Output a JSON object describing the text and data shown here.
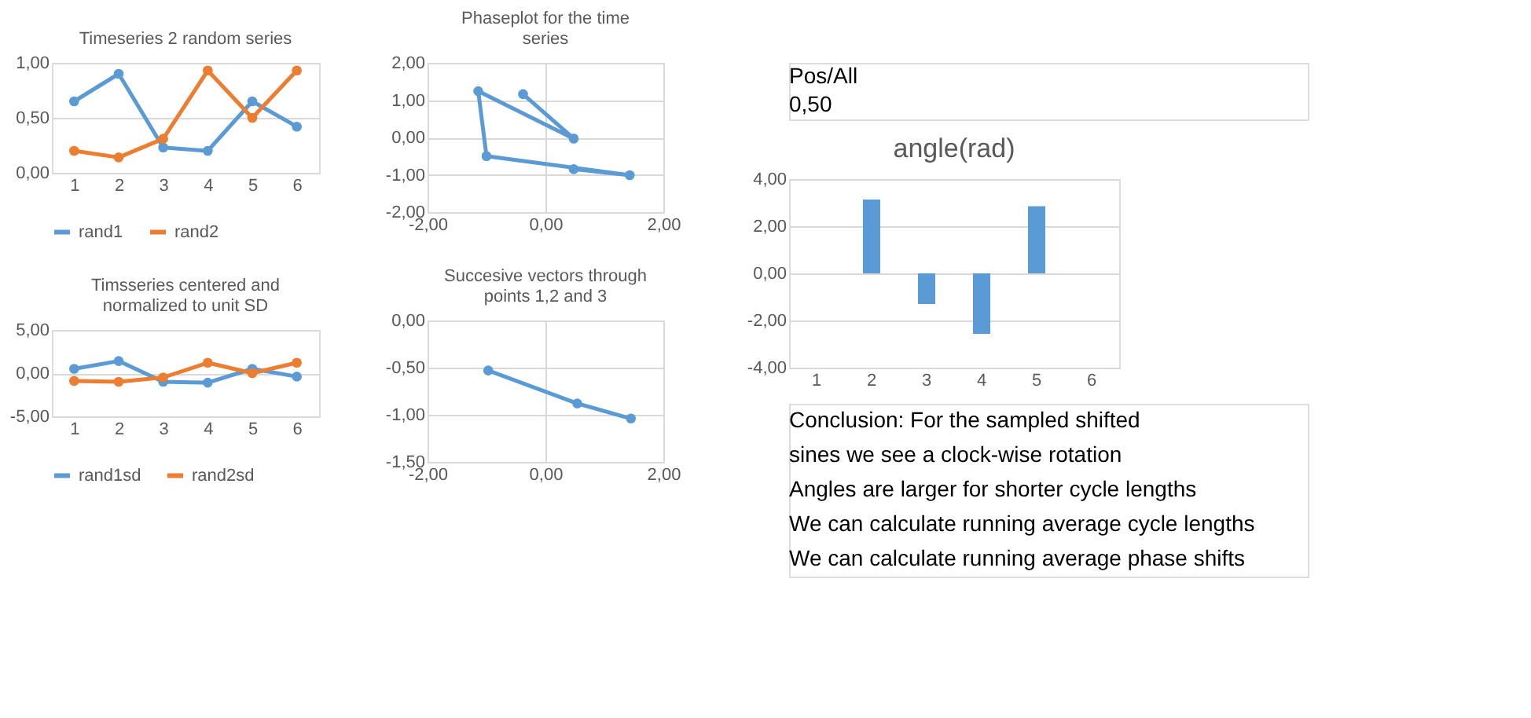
{
  "chart_data": [
    {
      "type": "line",
      "title": "Timeseries 2 random series",
      "categories": [
        "1",
        "2",
        "3",
        "4",
        "5",
        "6"
      ],
      "marker": "circle",
      "grid": "y",
      "legend": "bottom",
      "ylim": [
        0,
        1
      ],
      "yticks": [
        {
          "value": 0,
          "label": "0,00"
        },
        {
          "value": 0.5,
          "label": "0,50"
        },
        {
          "value": 1,
          "label": "1,00"
        }
      ],
      "series": [
        {
          "name": "rand1",
          "color": "#5b9bd5",
          "values": [
            0.65,
            0.9,
            0.23,
            0.2,
            0.65,
            0.42
          ]
        },
        {
          "name": "rand2",
          "color": "#ed7d31",
          "values": [
            0.2,
            0.14,
            0.31,
            0.93,
            0.5,
            0.93
          ]
        }
      ]
    },
    {
      "type": "line",
      "title": "Timsseries centered and normalized to unit SD",
      "categories": [
        "1",
        "2",
        "3",
        "4",
        "5",
        "6"
      ],
      "marker": "circle",
      "grid": "y",
      "legend": "bottom",
      "ylim": [
        -5,
        5
      ],
      "yticks": [
        {
          "value": -5,
          "label": "-5,00"
        },
        {
          "value": 0,
          "label": "0,00"
        },
        {
          "value": 5,
          "label": "5,00"
        }
      ],
      "series": [
        {
          "name": "rand1sd",
          "color": "#5b9bd5",
          "values": [
            0.5,
            1.4,
            -1.0,
            -1.1,
            0.5,
            -0.4
          ]
        },
        {
          "name": "rand2sd",
          "color": "#ed7d31",
          "values": [
            -0.9,
            -1.0,
            -0.5,
            1.2,
            0.0,
            1.2
          ]
        }
      ]
    },
    {
      "type": "line",
      "title": "Phaseplot for the time series",
      "marker": "circle",
      "grid": true,
      "xlim": [
        -2,
        2
      ],
      "xticks": [
        {
          "value": -2,
          "label": "-2,00"
        },
        {
          "value": 0,
          "label": "0,00"
        },
        {
          "value": 2,
          "label": "2,00"
        }
      ],
      "ylim": [
        -2,
        2
      ],
      "yticks": [
        {
          "value": -2,
          "label": "-2,00"
        },
        {
          "value": -1,
          "label": "-1,00"
        },
        {
          "value": 0,
          "label": "0,00"
        },
        {
          "value": 1,
          "label": "1,00"
        },
        {
          "value": 2,
          "label": "2,00"
        }
      ],
      "series": [
        {
          "color": "#5b9bd5",
          "x": [
            0.48,
            1.43,
            -1.0,
            -1.14,
            0.48,
            -0.38
          ],
          "values": [
            -0.85,
            -1.01,
            -0.5,
            1.24,
            -0.03,
            1.16
          ]
        }
      ]
    },
    {
      "type": "line",
      "title": "Succesive vectors through points 1,2 and 3",
      "marker": "circle",
      "grid": true,
      "xlim": [
        -2,
        2
      ],
      "xticks": [
        {
          "value": -2,
          "label": "-2,00"
        },
        {
          "value": 0,
          "label": "0,00"
        },
        {
          "value": 2,
          "label": "2,00"
        }
      ],
      "ylim": [
        -1.5,
        0
      ],
      "yticks": [
        {
          "value": -1.5,
          "label": "-1,50"
        },
        {
          "value": -1,
          "label": "-1,00"
        },
        {
          "value": -0.5,
          "label": "-0,50"
        },
        {
          "value": 0,
          "label": "0,00"
        }
      ],
      "series": [
        {
          "color": "#5b9bd5",
          "x": [
            -0.97,
            0.54,
            1.45
          ],
          "values": [
            -0.53,
            -0.88,
            -1.04
          ]
        }
      ]
    },
    {
      "type": "other",
      "annotations": [
        "Pos/All",
        "0,50"
      ]
    },
    {
      "type": "bar",
      "title": "angle(rad)",
      "categories": [
        "1",
        "2",
        "3",
        "4",
        "5",
        "6"
      ],
      "grid": "y",
      "ylim": [
        -4,
        4
      ],
      "yticks": [
        {
          "value": -4,
          "label": "-4,00"
        },
        {
          "value": -2,
          "label": "-2,00"
        },
        {
          "value": 0,
          "label": "0,00"
        },
        {
          "value": 2,
          "label": "2,00"
        },
        {
          "value": 4,
          "label": "4,00"
        }
      ],
      "series": [
        {
          "color": "#5b9bd5",
          "values": [
            null,
            3.13,
            -1.3,
            -2.57,
            2.85,
            null
          ]
        }
      ]
    },
    {
      "type": "other",
      "annotations": [
        "Conclusion: For the sampled shifted",
        "sines we see a clock-wise rotation",
        "Angles are larger for shorter cycle lengths",
        "We can calculate running average cycle lengths",
        "We can calculate running average phase shifts"
      ]
    }
  ]
}
